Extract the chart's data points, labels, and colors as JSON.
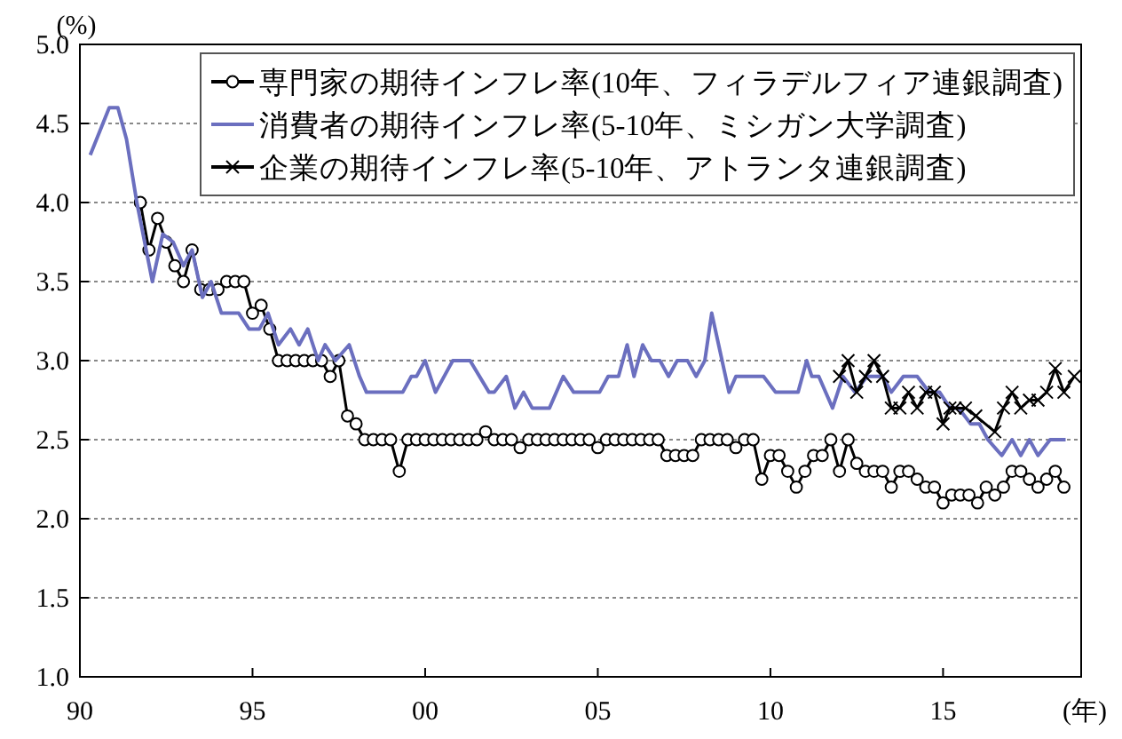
{
  "chart_data": {
    "type": "line",
    "ylabel": "(%)",
    "xlabel": "(年)",
    "xlim": [
      1990,
      2019
    ],
    "xticks": [
      {
        "value": 1990,
        "label": "90"
      },
      {
        "value": 1995,
        "label": "95"
      },
      {
        "value": 2000,
        "label": "00"
      },
      {
        "value": 2005,
        "label": "05"
      },
      {
        "value": 2010,
        "label": "10"
      },
      {
        "value": 2015,
        "label": "15"
      }
    ],
    "ylim": [
      1,
      5
    ],
    "yticks": [
      {
        "value": 1,
        "label": "1.0"
      },
      {
        "value": 1.5,
        "label": "1.5"
      },
      {
        "value": 2,
        "label": "2.0"
      },
      {
        "value": 2.5,
        "label": "2.5"
      },
      {
        "value": 3,
        "label": "3.0"
      },
      {
        "value": 3.5,
        "label": "3.5"
      },
      {
        "value": 4,
        "label": "4.0"
      },
      {
        "value": 4.5,
        "label": "4.5"
      },
      {
        "value": 5,
        "label": "5.0"
      }
    ],
    "grid": "y",
    "legend": "top right",
    "line_style": "solid",
    "series": [
      {
        "name": "専門家の期待インフレ率(10年、フィラデルフィア連銀調査)",
        "color": "#000000",
        "marker": "circle",
        "x": [
          1991.75,
          1992,
          1992.25,
          1992.5,
          1992.75,
          1993,
          1993.25,
          1993.5,
          1993.75,
          1994,
          1994.25,
          1994.5,
          1994.75,
          1995,
          1995.25,
          1995.5,
          1995.75,
          1996,
          1996.25,
          1996.5,
          1996.75,
          1997,
          1997.25,
          1997.5,
          1997.75,
          1998,
          1998.25,
          1998.5,
          1998.75,
          1999,
          1999.25,
          1999.5,
          1999.75,
          2000,
          2000.25,
          2000.5,
          2000.75,
          2001,
          2001.25,
          2001.5,
          2001.75,
          2002,
          2002.25,
          2002.5,
          2002.75,
          2003,
          2003.25,
          2003.5,
          2003.75,
          2004,
          2004.25,
          2004.5,
          2004.75,
          2005,
          2005.25,
          2005.5,
          2005.75,
          2006,
          2006.25,
          2006.5,
          2006.75,
          2007,
          2007.25,
          2007.5,
          2007.75,
          2008,
          2008.25,
          2008.5,
          2008.75,
          2009,
          2009.25,
          2009.5,
          2009.75,
          2010,
          2010.25,
          2010.5,
          2010.75,
          2011,
          2011.25,
          2011.5,
          2011.75,
          2012,
          2012.25,
          2012.5,
          2012.75,
          2013,
          2013.25,
          2013.5,
          2013.75,
          2014,
          2014.25,
          2014.5,
          2014.75,
          2015,
          2015.25,
          2015.5,
          2015.75,
          2016,
          2016.25,
          2016.5,
          2016.75,
          2017,
          2017.25,
          2017.5,
          2017.75,
          2018,
          2018.25,
          2018.5
        ],
        "values": [
          4.0,
          3.7,
          3.9,
          3.75,
          3.6,
          3.5,
          3.7,
          3.45,
          3.45,
          3.45,
          3.5,
          3.5,
          3.5,
          3.3,
          3.35,
          3.2,
          3.0,
          3.0,
          3.0,
          3.0,
          3.0,
          3.0,
          2.9,
          3.0,
          2.65,
          2.6,
          2.5,
          2.5,
          2.5,
          2.5,
          2.3,
          2.5,
          2.5,
          2.5,
          2.5,
          2.5,
          2.5,
          2.5,
          2.5,
          2.5,
          2.55,
          2.5,
          2.5,
          2.5,
          2.45,
          2.5,
          2.5,
          2.5,
          2.5,
          2.5,
          2.5,
          2.5,
          2.5,
          2.45,
          2.5,
          2.5,
          2.5,
          2.5,
          2.5,
          2.5,
          2.5,
          2.4,
          2.4,
          2.4,
          2.4,
          2.5,
          2.5,
          2.5,
          2.5,
          2.45,
          2.5,
          2.5,
          2.25,
          2.4,
          2.4,
          2.3,
          2.2,
          2.3,
          2.4,
          2.4,
          2.5,
          2.3,
          2.5,
          2.35,
          2.3,
          2.3,
          2.3,
          2.2,
          2.3,
          2.3,
          2.25,
          2.2,
          2.2,
          2.1,
          2.15,
          2.15,
          2.15,
          2.1,
          2.2,
          2.15,
          2.2,
          2.3,
          2.3,
          2.25,
          2.2,
          2.25,
          2.3,
          2.2
        ]
      },
      {
        "name": "消費者の期待インフレ率(5-10年、ミシガン大学調査)",
        "color": "#6b6fbf",
        "marker": "none",
        "x": [
          1990.3,
          1990.85,
          1991.1,
          1991.35,
          1991.65,
          1992.1,
          1992.4,
          1992.7,
          1993.0,
          1993.25,
          1993.55,
          1993.8,
          1994.1,
          1994.6,
          1994.9,
          1995.2,
          1995.45,
          1995.75,
          1996.1,
          1996.35,
          1996.6,
          1996.9,
          1997.1,
          1997.4,
          1997.8,
          1998.1,
          1998.3,
          1999.35,
          1999.6,
          1999.75,
          2000.0,
          2000.3,
          2000.8,
          2001.3,
          2001.85,
          2002.0,
          2002.35,
          2002.6,
          2002.85,
          2003.1,
          2003.6,
          2004.0,
          2004.3,
          2005.05,
          2005.3,
          2005.6,
          2005.85,
          2006.05,
          2006.3,
          2006.55,
          2006.8,
          2007.05,
          2007.3,
          2007.6,
          2007.85,
          2008.1,
          2008.3,
          2008.5,
          2008.8,
          2009.0,
          2009.8,
          2010.15,
          2010.8,
          2011.05,
          2011.2,
          2011.4,
          2011.8,
          2012.1,
          2012.45,
          2012.8,
          2013.25,
          2013.5,
          2013.85,
          2014.25,
          2014.6,
          2014.9,
          2015.2,
          2015.45,
          2015.8,
          2016.05,
          2016.3,
          2016.7,
          2017.0,
          2017.25,
          2017.5,
          2017.75,
          2018.1,
          2018.55
        ],
        "values": [
          4.3,
          4.6,
          4.6,
          4.4,
          4.0,
          3.5,
          3.8,
          3.75,
          3.6,
          3.7,
          3.4,
          3.5,
          3.3,
          3.3,
          3.2,
          3.2,
          3.3,
          3.1,
          3.2,
          3.1,
          3.2,
          3.0,
          3.1,
          3.0,
          3.1,
          2.9,
          2.8,
          2.8,
          2.9,
          2.9,
          3.0,
          2.8,
          3.0,
          3.0,
          2.8,
          2.8,
          2.9,
          2.7,
          2.8,
          2.7,
          2.7,
          2.9,
          2.8,
          2.8,
          2.9,
          2.9,
          3.1,
          2.9,
          3.1,
          3.0,
          3.0,
          2.9,
          3.0,
          3.0,
          2.9,
          3.0,
          3.3,
          3.1,
          2.8,
          2.9,
          2.9,
          2.8,
          2.8,
          3.0,
          2.9,
          2.9,
          2.7,
          2.9,
          2.8,
          2.9,
          2.9,
          2.8,
          2.9,
          2.9,
          2.8,
          2.8,
          2.7,
          2.7,
          2.6,
          2.6,
          2.5,
          2.4,
          2.5,
          2.4,
          2.5,
          2.4,
          2.5,
          2.5
        ]
      },
      {
        "name": "企業の期待インフレ率(5-10年、アトランタ連銀調査)",
        "color": "#000000",
        "marker": "cross",
        "x": [
          2012.0,
          2012.25,
          2012.5,
          2012.75,
          2013.0,
          2013.25,
          2013.5,
          2013.75,
          2014.0,
          2014.25,
          2014.5,
          2014.75,
          2015.0,
          2015.2,
          2015.35,
          2015.65,
          2015.95,
          2016.5,
          2016.75,
          2017.0,
          2017.25,
          2017.5,
          2017.75,
          2018.0,
          2018.25,
          2018.5,
          2018.8
        ],
        "values": [
          2.9,
          3.0,
          2.8,
          2.9,
          3.0,
          2.9,
          2.7,
          2.7,
          2.8,
          2.7,
          2.8,
          2.8,
          2.6,
          2.7,
          2.7,
          2.7,
          2.65,
          2.55,
          2.7,
          2.8,
          2.7,
          2.75,
          2.75,
          2.8,
          2.95,
          2.8,
          2.9
        ]
      }
    ]
  }
}
